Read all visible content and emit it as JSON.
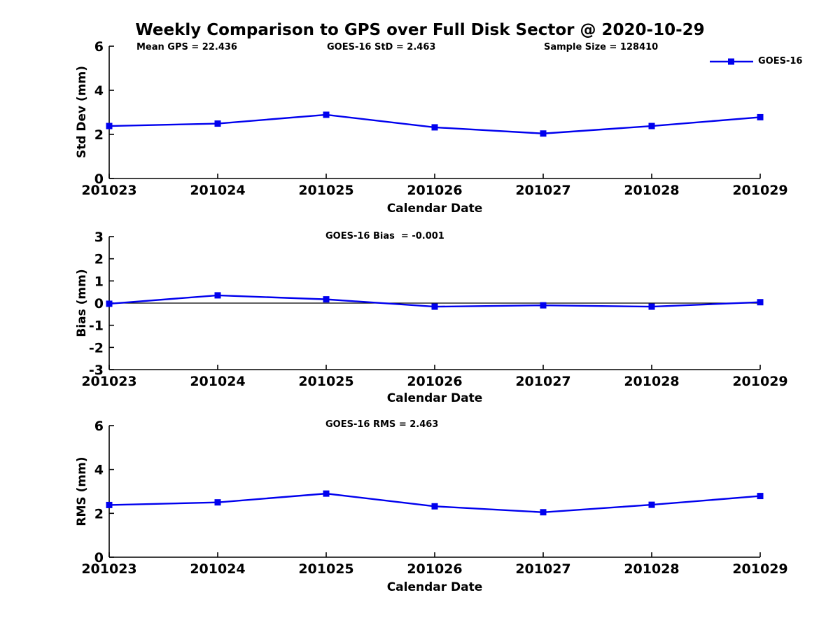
{
  "title": "Weekly Comparison to GPS over Full Disk Sector @ 2020-10-29",
  "annotations": {
    "mean_gps": "Mean GPS = 22.436",
    "std": "GOES-16 StD = 2.463",
    "sample_size": "Sample Size = 128410",
    "bias": "GOES-16 Bias  = -0.001",
    "rms": "GOES-16 RMS = 2.463"
  },
  "legend": {
    "label": "GOES-16",
    "color": "#0000ee"
  },
  "colors": {
    "series": "#0000ee",
    "axis": "#000000",
    "zero_line": "#000000",
    "text": "#000000"
  },
  "chart_data": [
    {
      "type": "line",
      "title": "",
      "categories": [
        "201023",
        "201024",
        "201025",
        "201026",
        "201027",
        "201028",
        "201029"
      ],
      "series": [
        {
          "name": "GOES-16",
          "color": "#0000ee",
          "values": [
            2.38,
            2.49,
            2.89,
            2.32,
            2.04,
            2.38,
            2.78
          ]
        }
      ],
      "xlabel": "Calendar Date",
      "ylabel": "Std Dev (mm)",
      "ylim": [
        0,
        6
      ],
      "yticks": [
        0,
        2,
        4,
        6
      ],
      "zero_line": false,
      "grid": false,
      "legend_position": "top-right"
    },
    {
      "type": "line",
      "title": "",
      "categories": [
        "201023",
        "201024",
        "201025",
        "201026",
        "201027",
        "201028",
        "201029"
      ],
      "series": [
        {
          "name": "GOES-16",
          "color": "#0000ee",
          "values": [
            -0.03,
            0.35,
            0.17,
            -0.16,
            -0.1,
            -0.16,
            0.04
          ]
        }
      ],
      "xlabel": "Calendar Date",
      "ylabel": "Bias (mm)",
      "ylim": [
        -3,
        3
      ],
      "yticks": [
        -3,
        -2,
        -1,
        0,
        1,
        2,
        3
      ],
      "zero_line": true,
      "grid": false,
      "legend_position": "none"
    },
    {
      "type": "line",
      "title": "",
      "categories": [
        "201023",
        "201024",
        "201025",
        "201026",
        "201027",
        "201028",
        "201029"
      ],
      "series": [
        {
          "name": "GOES-16",
          "color": "#0000ee",
          "values": [
            2.38,
            2.5,
            2.9,
            2.32,
            2.05,
            2.39,
            2.79
          ]
        }
      ],
      "xlabel": "Calendar Date",
      "ylabel": "RMS (mm)",
      "ylim": [
        0,
        6
      ],
      "yticks": [
        0,
        2,
        4,
        6
      ],
      "zero_line": false,
      "grid": false,
      "legend_position": "none"
    }
  ]
}
